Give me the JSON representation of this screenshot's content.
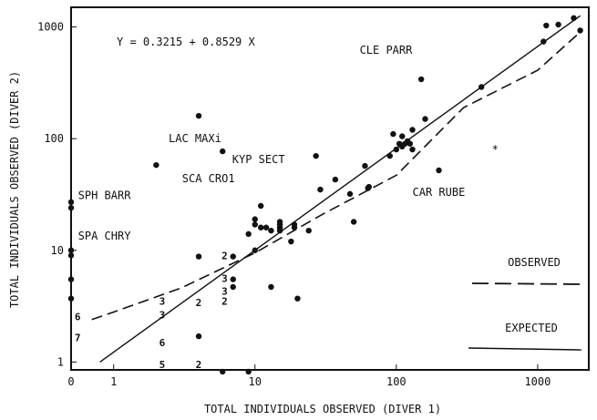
{
  "chart_data": {
    "type": "scatter",
    "title": "",
    "equation": "Y = 0.3215 + 0.8529 X",
    "xlabel": "TOTAL INDIVIDUALS OBSERVED (DIVER 1)",
    "ylabel": "TOTAL INDIVIDUALS OBSERVED (DIVER 2)",
    "x_scale": "log",
    "y_scale": "log",
    "xlim": [
      0.5,
      2300
    ],
    "ylim": [
      0.85,
      1500
    ],
    "x_ticks": [
      {
        "value": 0.5,
        "label": "0"
      },
      {
        "value": 1,
        "label": "1"
      },
      {
        "value": 10,
        "label": "10"
      },
      {
        "value": 100,
        "label": "100"
      },
      {
        "value": 1000,
        "label": "1000"
      }
    ],
    "y_ticks": [
      {
        "value": 1,
        "label": "1"
      },
      {
        "value": 10,
        "label": "10"
      },
      {
        "value": 100,
        "label": "100"
      },
      {
        "value": 1000,
        "label": "1000"
      }
    ],
    "points": [
      [
        0.5,
        27
      ],
      [
        0.5,
        24
      ],
      [
        0.5,
        10
      ],
      [
        0.5,
        9
      ],
      [
        0.5,
        5.5
      ],
      [
        0.5,
        3.7
      ],
      [
        2,
        58
      ],
      [
        4,
        160
      ],
      [
        5.9,
        77
      ],
      [
        4,
        8.8
      ],
      [
        4,
        1.7
      ],
      [
        5.9,
        0.82
      ],
      [
        9,
        0.82
      ],
      [
        7,
        8.8
      ],
      [
        7,
        5.5
      ],
      [
        7,
        4.7
      ],
      [
        9,
        14
      ],
      [
        10,
        17
      ],
      [
        10,
        19
      ],
      [
        10,
        10
      ],
      [
        11,
        16
      ],
      [
        11,
        25
      ],
      [
        12,
        16
      ],
      [
        13,
        15
      ],
      [
        13,
        4.7
      ],
      [
        15,
        16
      ],
      [
        15,
        16
      ],
      [
        15,
        15
      ],
      [
        15,
        17
      ],
      [
        15,
        18
      ],
      [
        18,
        12
      ],
      [
        19,
        16
      ],
      [
        19,
        17
      ],
      [
        20,
        3.7
      ],
      [
        24,
        15
      ],
      [
        27,
        70
      ],
      [
        29,
        35
      ],
      [
        37,
        43
      ],
      [
        47,
        32
      ],
      [
        50,
        18
      ],
      [
        60,
        57
      ],
      [
        63,
        36
      ],
      [
        64,
        37
      ],
      [
        90,
        70
      ],
      [
        95,
        110
      ],
      [
        100,
        80
      ],
      [
        105,
        90
      ],
      [
        110,
        85
      ],
      [
        110,
        105
      ],
      [
        115,
        90
      ],
      [
        120,
        95
      ],
      [
        125,
        90
      ],
      [
        130,
        80
      ],
      [
        130,
        120
      ],
      [
        150,
        340
      ],
      [
        160,
        150
      ],
      [
        200,
        52
      ],
      [
        400,
        290
      ],
      [
        1100,
        740
      ],
      [
        1150,
        1030
      ],
      [
        1400,
        1050
      ],
      [
        1800,
        1200
      ],
      [
        2000,
        930
      ]
    ],
    "count_labels": [
      {
        "text": "2",
        "x": 5.8,
        "y": 9
      },
      {
        "text": "2",
        "x": 5.8,
        "y": 3.5
      },
      {
        "text": "2",
        "x": 3.8,
        "y": 3.4
      },
      {
        "text": "2",
        "x": 3.8,
        "y": 0.95
      },
      {
        "text": "3",
        "x": 5.8,
        "y": 5.6
      },
      {
        "text": "3",
        "x": 5.8,
        "y": 4.3
      },
      {
        "text": "3",
        "x": 2.1,
        "y": 3.5
      },
      {
        "text": "3",
        "x": 2.1,
        "y": 2.65
      },
      {
        "text": "5",
        "x": 2.1,
        "y": 0.95
      },
      {
        "text": "6",
        "x": 2.1,
        "y": 1.5
      },
      {
        "text": "6",
        "x": 0.53,
        "y": 2.55
      },
      {
        "text": "7",
        "x": 0.53,
        "y": 1.65
      }
    ],
    "species_labels": [
      {
        "text": "CLE PARR",
        "x": 55,
        "y": 620
      },
      {
        "text": "LAC MAXi",
        "x": 2.45,
        "y": 100
      },
      {
        "text": "KYP SECT",
        "x": 6.9,
        "y": 65
      },
      {
        "text": "SCA CRO1",
        "x": 3.05,
        "y": 44
      },
      {
        "text": "SPH BARR",
        "x": 0.56,
        "y": 31
      },
      {
        "text": "SPA CHRY",
        "x": 0.56,
        "y": 13.5
      },
      {
        "text": "CAR RUBE",
        "x": 130,
        "y": 33
      }
    ],
    "asterisk": {
      "x": 500,
      "y": 80
    },
    "series": [
      {
        "name": "OBSERVED",
        "style": "dashed",
        "points": [
          [
            0.7,
            2.4
          ],
          [
            1,
            2.8
          ],
          [
            3,
            4.6
          ],
          [
            10,
            9.5
          ],
          [
            30,
            21
          ],
          [
            100,
            47
          ],
          [
            300,
            190
          ],
          [
            1000,
            410
          ],
          [
            2000,
            900
          ]
        ]
      },
      {
        "name": "EXPECTED",
        "style": "solid",
        "points": [
          [
            0.8,
            1.0
          ],
          [
            2000,
            1260
          ]
        ]
      }
    ]
  }
}
